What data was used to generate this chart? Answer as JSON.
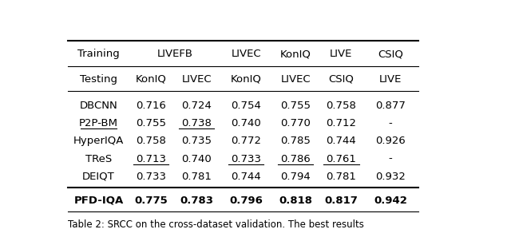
{
  "header1_labels": [
    "Training",
    "LIVEFB",
    "LIVEC",
    "KonIQ",
    "LIVE",
    "CSIQ"
  ],
  "header1_cols": [
    0,
    1,
    3,
    4,
    5,
    6
  ],
  "header2": [
    "Testing",
    "KonIQ",
    "LIVEC",
    "KonIQ",
    "LIVEC",
    "CSIQ",
    "LIVE"
  ],
  "rows": [
    [
      "DBCNN",
      "0.716",
      "0.724",
      "0.754",
      "0.755",
      "0.758",
      "0.877"
    ],
    [
      "P2P-BM",
      "0.755",
      "0.738",
      "0.740",
      "0.770",
      "0.712",
      "-"
    ],
    [
      "HyperIQA",
      "0.758",
      "0.735",
      "0.772",
      "0.785",
      "0.744",
      "0.926"
    ],
    [
      "TReS",
      "0.713",
      "0.740",
      "0.733",
      "0.786",
      "0.761",
      "-"
    ],
    [
      "DEIQT",
      "0.733",
      "0.781",
      "0.744",
      "0.794",
      "0.781",
      "0.932"
    ]
  ],
  "last_row": [
    "PFD-IQA",
    "0.775",
    "0.783",
    "0.796",
    "0.818",
    "0.817",
    "0.942"
  ],
  "underline_cells": [
    [
      2,
      1
    ],
    [
      2,
      3
    ],
    [
      4,
      2
    ],
    [
      4,
      4
    ],
    [
      4,
      5
    ],
    [
      4,
      6
    ]
  ],
  "caption": "Table 2: SRCC on the cross-dataset validation. The best results",
  "bg_color": "#ffffff",
  "text_color": "#000000",
  "figsize": [
    6.4,
    3.02
  ],
  "dpi": 100
}
